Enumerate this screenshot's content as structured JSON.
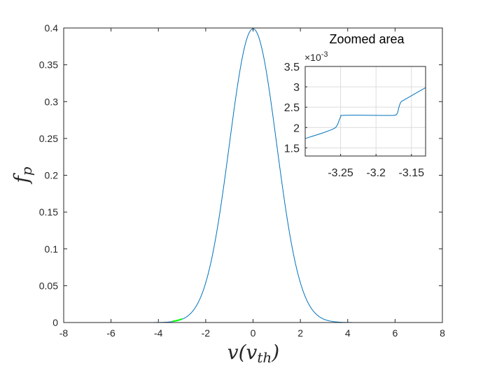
{
  "chart_data": [
    {
      "type": "line",
      "title": "",
      "xlabel": "v(v",
      "xlabel_sub": "th",
      "xlabel_close": ")",
      "ylabel": "f",
      "ylabel_sub": "p",
      "xlim": [
        -8,
        8
      ],
      "ylim": [
        0,
        0.4
      ],
      "xticks": [
        -8,
        -6,
        -4,
        -2,
        0,
        2,
        4,
        6,
        8
      ],
      "yticks": [
        0,
        0.05,
        0.1,
        0.15,
        0.2,
        0.25,
        0.3,
        0.35,
        0.4
      ],
      "series": [
        {
          "color": "#0072BD",
          "function": "maxwellian",
          "mean": 0,
          "sigma": 1
        },
        {
          "color": "#00FF00",
          "x_range": [
            -3.4,
            -3.0
          ]
        }
      ]
    },
    {
      "type": "line",
      "title": "Zoomed area",
      "exponent_label": "×10",
      "exponent_value": "-3",
      "xlim": [
        -3.3,
        -3.13
      ],
      "ylim": [
        1.3,
        3.5
      ],
      "xticks": [
        -3.25,
        -3.2,
        -3.15
      ],
      "yticks": [
        1.5,
        2,
        2.5,
        3,
        3.5
      ],
      "grid": true,
      "series": [
        {
          "color": "#0072BD",
          "x": [
            -3.3,
            -3.275,
            -3.26,
            -3.255,
            -3.25,
            -3.245,
            -3.2,
            -3.175,
            -3.17,
            -3.168,
            -3.165,
            -3.16,
            -3.13
          ],
          "y": [
            1.73,
            1.87,
            1.97,
            2.05,
            2.26,
            2.3,
            2.3,
            2.3,
            2.35,
            2.48,
            2.62,
            2.68,
            2.98
          ]
        }
      ]
    }
  ]
}
